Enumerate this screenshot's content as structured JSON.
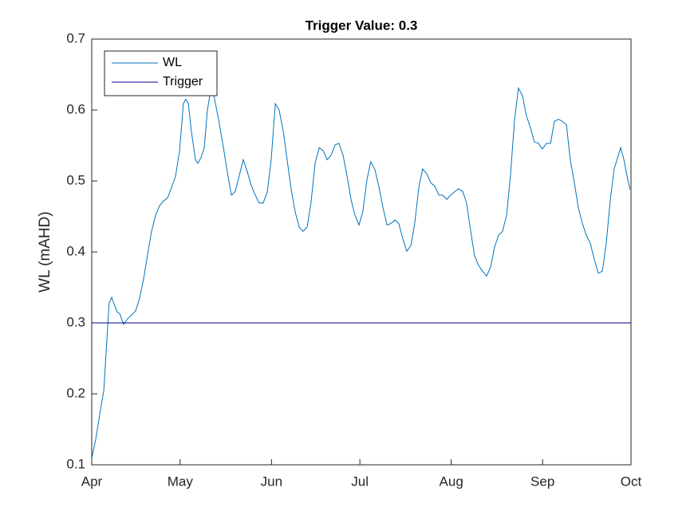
{
  "chart_data": {
    "type": "line",
    "title": "Trigger Value: 0.3",
    "y_label": "WL (mAHD)",
    "xlim": [
      0,
      183
    ],
    "xticks": [
      {
        "value": 0,
        "label": "Apr"
      },
      {
        "value": 30,
        "label": "May"
      },
      {
        "value": 61,
        "label": "Jun"
      },
      {
        "value": 91,
        "label": "Jul"
      },
      {
        "value": 122,
        "label": "Aug"
      },
      {
        "value": 153,
        "label": "Sep"
      },
      {
        "value": 183,
        "label": "Oct"
      }
    ],
    "ylim": [
      0.1,
      0.7
    ],
    "yticks": [
      0.1,
      0.2,
      0.3,
      0.4,
      0.5,
      0.6,
      0.7
    ],
    "grid": false,
    "legend": "upper-left",
    "series": [
      {
        "name": "WL",
        "color": "#0072bd",
        "x": [
          0,
          1.4,
          2.7,
          4.1,
          4.9,
          5.4,
          5.9,
          6.8,
          7.6,
          8.7,
          9.5,
          10.8,
          12.2,
          13.5,
          14.9,
          16.2,
          17.6,
          18.9,
          20.3,
          21.7,
          23.0,
          24.4,
          25.7,
          27.1,
          28.4,
          29.8,
          31.1,
          31.9,
          32.8,
          33.8,
          35.2,
          36.0,
          37.1,
          38.2,
          39.2,
          40.1,
          40.9,
          42.0,
          43.3,
          44.7,
          46.0,
          47.4,
          48.7,
          50.1,
          51.4,
          52.8,
          54.1,
          55.5,
          56.8,
          58.2,
          59.6,
          60.9,
          62.3,
          63.6,
          65.0,
          66.3,
          67.7,
          69.0,
          70.4,
          71.7,
          73.1,
          74.4,
          75.8,
          77.2,
          78.5,
          79.9,
          81.2,
          82.6,
          83.9,
          85.3,
          86.6,
          88.0,
          89.3,
          90.7,
          92.0,
          93.4,
          94.7,
          96.1,
          97.5,
          98.8,
          100.2,
          101.5,
          102.9,
          104.2,
          105.6,
          106.9,
          108.3,
          109.6,
          111.0,
          112.3,
          113.7,
          115.1,
          116.4,
          117.8,
          119.1,
          120.5,
          121.8,
          123.2,
          124.5,
          125.9,
          127.2,
          128.6,
          129.9,
          131.3,
          132.6,
          134.0,
          135.4,
          136.7,
          138.1,
          139.4,
          140.8,
          142.1,
          143.5,
          144.8,
          146.2,
          147.5,
          148.9,
          150.2,
          151.6,
          152.9,
          154.3,
          155.7,
          157.0,
          158.4,
          159.7,
          161.1,
          162.4,
          163.8,
          165.1,
          166.5,
          167.8,
          169.2,
          170.5,
          171.9,
          173.3,
          174.6,
          176.0,
          177.3,
          178.7,
          179.5,
          180.6,
          181.9,
          182.7
        ],
        "values": [
          0.109,
          0.137,
          0.171,
          0.205,
          0.26,
          0.294,
          0.328,
          0.336,
          0.326,
          0.315,
          0.313,
          0.298,
          0.306,
          0.311,
          0.317,
          0.334,
          0.362,
          0.395,
          0.429,
          0.452,
          0.465,
          0.472,
          0.476,
          0.491,
          0.506,
          0.542,
          0.609,
          0.615,
          0.609,
          0.57,
          0.53,
          0.525,
          0.533,
          0.547,
          0.598,
          0.622,
          0.631,
          0.609,
          0.581,
          0.547,
          0.513,
          0.48,
          0.485,
          0.508,
          0.53,
          0.513,
          0.494,
          0.48,
          0.469,
          0.469,
          0.485,
          0.53,
          0.609,
          0.6,
          0.57,
          0.53,
          0.488,
          0.457,
          0.435,
          0.429,
          0.435,
          0.469,
          0.525,
          0.547,
          0.543,
          0.53,
          0.536,
          0.551,
          0.553,
          0.536,
          0.508,
          0.474,
          0.452,
          0.438,
          0.457,
          0.502,
          0.527,
          0.516,
          0.491,
          0.463,
          0.438,
          0.44,
          0.445,
          0.44,
          0.418,
          0.401,
          0.409,
          0.44,
          0.491,
          0.517,
          0.51,
          0.497,
          0.493,
          0.48,
          0.48,
          0.474,
          0.48,
          0.485,
          0.489,
          0.485,
          0.469,
          0.429,
          0.395,
          0.381,
          0.373,
          0.366,
          0.379,
          0.407,
          0.424,
          0.429,
          0.452,
          0.508,
          0.587,
          0.631,
          0.62,
          0.592,
          0.575,
          0.555,
          0.553,
          0.545,
          0.553,
          0.553,
          0.584,
          0.587,
          0.584,
          0.579,
          0.53,
          0.497,
          0.463,
          0.44,
          0.424,
          0.412,
          0.39,
          0.37,
          0.373,
          0.412,
          0.474,
          0.517,
          0.536,
          0.547,
          0.53,
          0.502,
          0.488
        ]
      },
      {
        "name": "Trigger",
        "color": "#00008b",
        "x": [
          0,
          183
        ],
        "values": [
          0.3,
          0.3
        ]
      }
    ]
  }
}
